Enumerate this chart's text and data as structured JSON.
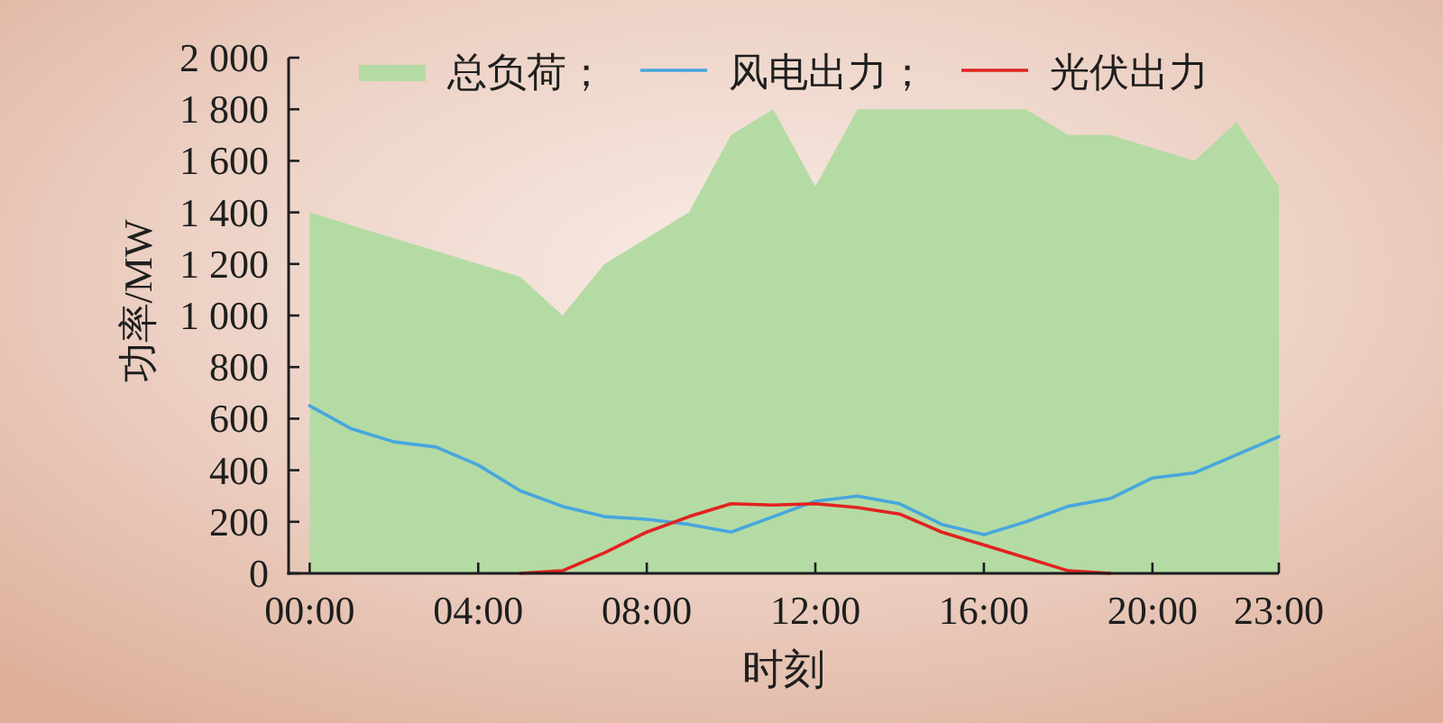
{
  "chart_data": {
    "type": "area",
    "xlabel": "时刻",
    "ylabel": "功率/MW",
    "x": [
      0,
      1,
      2,
      3,
      4,
      5,
      6,
      7,
      8,
      9,
      10,
      11,
      12,
      13,
      14,
      15,
      16,
      17,
      18,
      19,
      20,
      21,
      22,
      23
    ],
    "xlim": [
      -0.5,
      23
    ],
    "xticks": [
      {
        "value": 0,
        "label": "00:00"
      },
      {
        "value": 4,
        "label": "04:00"
      },
      {
        "value": 8,
        "label": "08:00"
      },
      {
        "value": 12,
        "label": "12:00"
      },
      {
        "value": 16,
        "label": "16:00"
      },
      {
        "value": 20,
        "label": "20:00"
      },
      {
        "value": 23,
        "label": "23:00"
      }
    ],
    "ylim": [
      0,
      2000
    ],
    "yticks": [
      0,
      200,
      400,
      600,
      800,
      {
        "value": 1000,
        "label": "1 000"
      },
      {
        "value": 1200,
        "label": "1 200"
      },
      {
        "value": 1400,
        "label": "1 400"
      },
      {
        "value": 1600,
        "label": "1 600"
      },
      {
        "value": 1800,
        "label": "1 800"
      },
      {
        "value": 2000,
        "label": "2 000"
      }
    ],
    "legend": "top",
    "series": [
      {
        "name": "总负荷；",
        "color": "#b4dba4",
        "values": [
          1400,
          1350,
          1300,
          1250,
          1200,
          1150,
          1000,
          1200,
          1300,
          1400,
          1700,
          1800,
          1500,
          1800,
          1800,
          1800,
          1800,
          1800,
          1700,
          1700,
          1650,
          1600,
          1750,
          1500
        ]
      },
      {
        "name": "风电出力；",
        "type": "line",
        "color": "#48a6de",
        "values": [
          650,
          560,
          510,
          490,
          420,
          320,
          260,
          220,
          210,
          190,
          160,
          220,
          280,
          300,
          270,
          190,
          150,
          200,
          260,
          290,
          370,
          390,
          460,
          530
        ]
      },
      {
        "name": "光伏出力",
        "type": "line",
        "color": "#e3221f",
        "values": [
          null,
          null,
          null,
          null,
          null,
          0,
          10,
          80,
          160,
          220,
          270,
          265,
          270,
          255,
          230,
          160,
          110,
          60,
          10,
          0,
          null,
          null,
          null,
          null
        ]
      }
    ]
  }
}
